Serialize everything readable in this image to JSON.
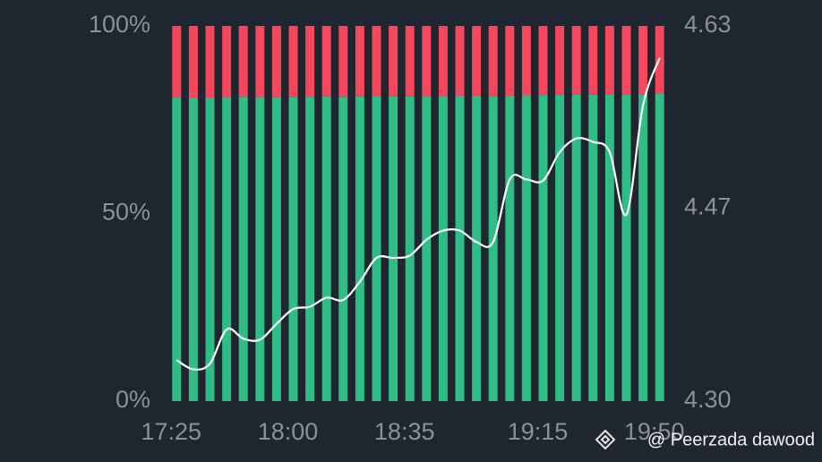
{
  "chart_data": {
    "type": "bar",
    "categories": [
      "17:25",
      null,
      null,
      null,
      null,
      null,
      null,
      "18:00",
      null,
      null,
      null,
      null,
      null,
      null,
      "18:35",
      null,
      null,
      null,
      null,
      null,
      null,
      null,
      "19:15",
      null,
      null,
      null,
      null,
      null,
      null,
      "19:50"
    ],
    "stacked": true,
    "series": [
      {
        "color": "#2ebd85",
        "values": [
          81.0,
          80.9,
          80.9,
          81.0,
          81.1,
          81.0,
          81.0,
          81.1,
          81.1,
          81.2,
          81.1,
          81.2,
          81.3,
          81.3,
          81.2,
          81.3,
          81.3,
          81.4,
          81.4,
          81.3,
          81.4,
          81.5,
          81.6,
          81.6,
          81.7,
          81.7,
          81.8,
          81.7,
          81.8,
          82.0
        ]
      },
      {
        "color": "#f6465d",
        "values": [
          19.0,
          19.1,
          19.1,
          19.0,
          18.9,
          19.0,
          19.0,
          18.9,
          18.9,
          18.8,
          18.9,
          18.8,
          18.7,
          18.7,
          18.8,
          18.7,
          18.7,
          18.6,
          18.6,
          18.7,
          18.6,
          18.5,
          18.4,
          18.4,
          18.3,
          18.3,
          18.2,
          18.3,
          18.2,
          18.0
        ]
      },
      {
        "type": "line",
        "axis": "y2",
        "color": "#ffffff",
        "values": [
          4.336,
          4.328,
          4.333,
          4.363,
          4.355,
          4.354,
          4.368,
          4.381,
          4.383,
          4.391,
          4.389,
          4.405,
          4.426,
          4.426,
          4.428,
          4.442,
          4.45,
          4.45,
          4.44,
          4.44,
          4.495,
          4.495,
          4.494,
          4.519,
          4.531,
          4.528,
          4.519,
          4.464,
          4.56,
          4.602
        ]
      }
    ],
    "ylim": [
      0,
      100
    ],
    "yticks": [
      {
        "value": 0,
        "label": "0%"
      },
      {
        "value": 50,
        "label": "50%"
      },
      {
        "value": 100,
        "label": "100%"
      }
    ],
    "y2lim": [
      4.3,
      4.63
    ],
    "y2ticks": [
      {
        "value": 4.3,
        "label": "4.30"
      },
      4.47,
      4.63
    ],
    "watermark": "@ Peerzada dawood"
  }
}
